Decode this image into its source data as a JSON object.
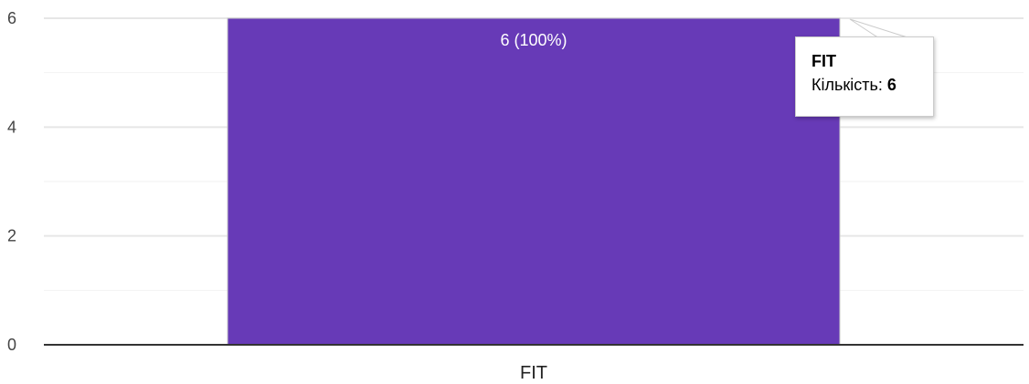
{
  "chart_data": {
    "type": "bar",
    "categories": [
      "FIT"
    ],
    "values": [
      6
    ],
    "data_labels": [
      "6 (100%)"
    ],
    "ylim": [
      0,
      6
    ],
    "y_ticks": [
      "0",
      "2",
      "4",
      "6"
    ],
    "grid": true,
    "colors": {
      "bar": "#673ab7"
    }
  },
  "tooltip": {
    "title": "FIT",
    "label": "Кількість:",
    "value": "6"
  }
}
